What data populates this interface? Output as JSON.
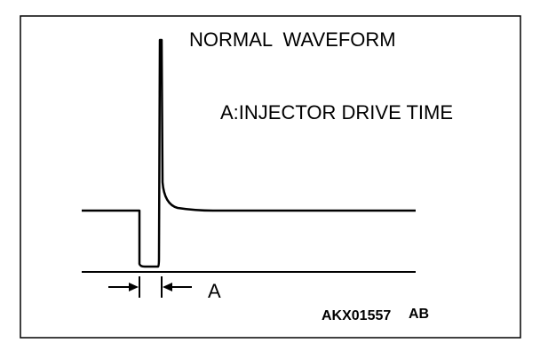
{
  "header": {
    "title": "NORMAL  WAVEFORM",
    "annotation": "A:INJECTOR DRIVE TIME"
  },
  "marker": {
    "label": "A"
  },
  "figure": {
    "code": "AKX01557",
    "suffix": "AB"
  }
}
